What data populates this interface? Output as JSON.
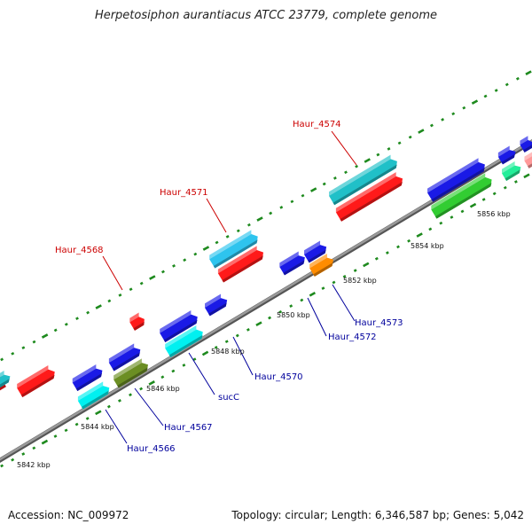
{
  "title": "Herpetosiphon aurantiacus ATCC 23779, complete genome",
  "footer": {
    "accession": "Accession: NC_009972",
    "summary": "Topology: circular; Length: 6,346,587 bp; Genes: 5,042"
  },
  "colors": {
    "backbone": "#8a8a8a",
    "tick": "#1e8a1e",
    "label_top": "#cc0000",
    "label_bottom": "#00009c",
    "genes": {
      "red": "#ff1a1a",
      "cyan": "#22d6e0",
      "sky": "#2ec4ee",
      "teal": "#20c0c8",
      "blue": "#1a1ae6",
      "aqua": "#00f0f0",
      "olive": "#6b8e23",
      "orange": "#ff8c00",
      "green": "#32cd32",
      "mint": "#22ee99",
      "pink": "#ff9999"
    }
  },
  "kbp_labels": [
    "5842 kbp",
    "5844 kbp",
    "5846 kbp",
    "5848 kbp",
    "5850 kbp",
    "5852 kbp",
    "5854 kbp",
    "5856 kbp"
  ],
  "gene_labels_top": [
    "Haur_4568",
    "Haur_4571",
    "Haur_4574"
  ],
  "gene_labels_bottom": [
    "Haur_4566",
    "Haur_4567",
    "sucC",
    "Haur_4570",
    "Haur_4572",
    "Haur_4573"
  ],
  "genes": [
    {
      "name": "gene-red-left-a",
      "color": "red"
    },
    {
      "name": "gene-teal-left",
      "color": "teal"
    },
    {
      "name": "gene-red-left-b",
      "color": "red"
    },
    {
      "name": "gene-blue-a",
      "color": "blue"
    },
    {
      "name": "gene-aqua-haur4566",
      "color": "aqua"
    },
    {
      "name": "gene-blue-b",
      "color": "blue"
    },
    {
      "name": "gene-olive-haur4567",
      "color": "olive"
    },
    {
      "name": "gene-red-haur4568",
      "color": "red"
    },
    {
      "name": "gene-blue-c",
      "color": "blue"
    },
    {
      "name": "gene-aqua-sucC",
      "color": "aqua"
    },
    {
      "name": "gene-blue-haur4570",
      "color": "blue"
    },
    {
      "name": "gene-sky-haur4571",
      "color": "sky"
    },
    {
      "name": "gene-red-haur4571",
      "color": "red"
    },
    {
      "name": "gene-blue-haur4572",
      "color": "blue"
    },
    {
      "name": "gene-blue-e",
      "color": "blue"
    },
    {
      "name": "gene-orange-haur4573",
      "color": "orange"
    },
    {
      "name": "gene-teal-haur4574",
      "color": "teal"
    },
    {
      "name": "gene-red-haur4574",
      "color": "red"
    },
    {
      "name": "gene-blue-f",
      "color": "blue"
    },
    {
      "name": "gene-green-f",
      "color": "green"
    },
    {
      "name": "gene-blue-g",
      "color": "blue"
    },
    {
      "name": "gene-mint-g",
      "color": "mint"
    },
    {
      "name": "gene-blue-h",
      "color": "blue"
    },
    {
      "name": "gene-pink-h",
      "color": "pink"
    }
  ]
}
